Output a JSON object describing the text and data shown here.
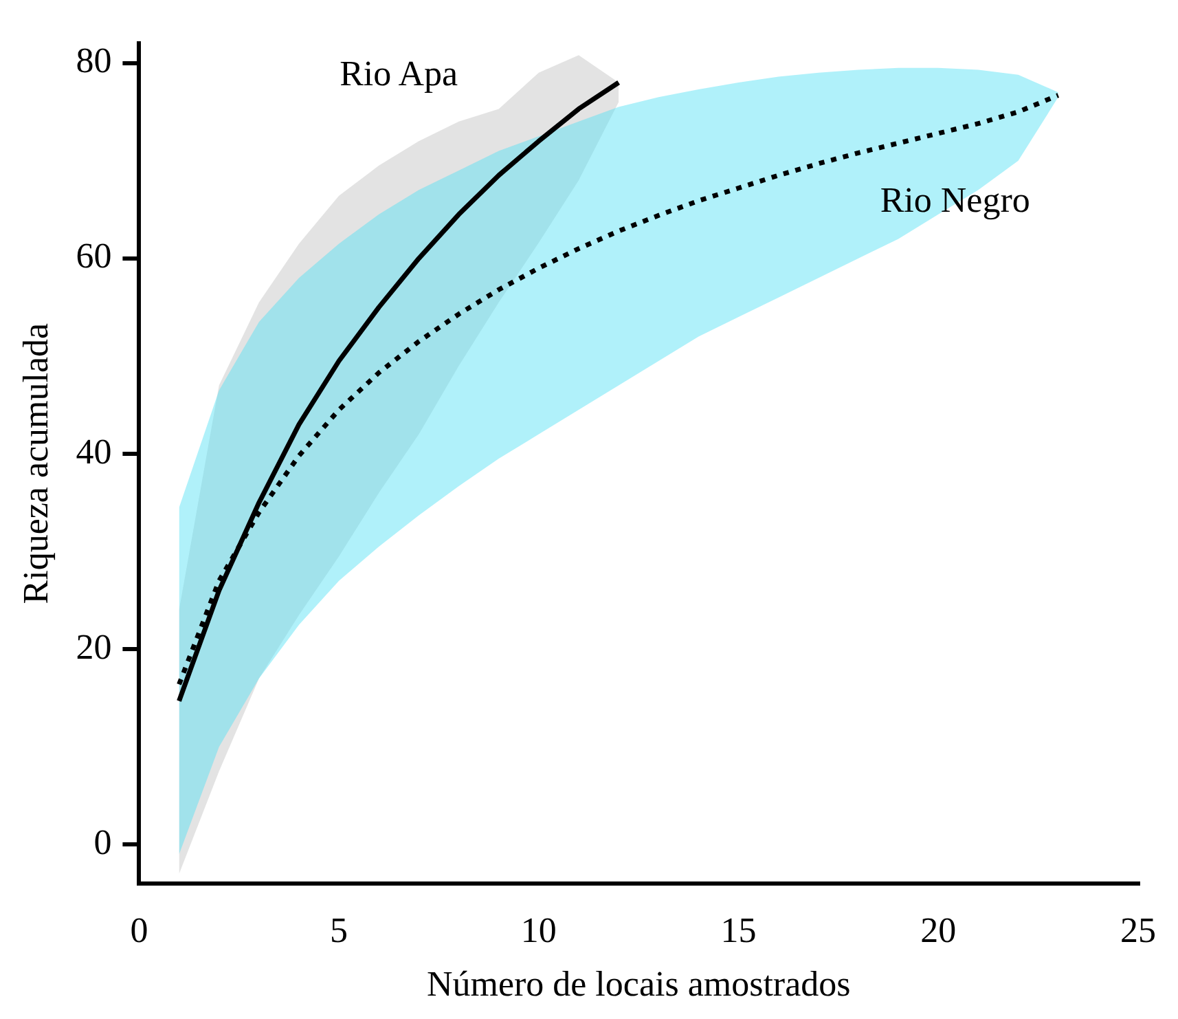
{
  "chart_data": {
    "type": "line",
    "xlabel": "Número de locais amostrados",
    "ylabel": "Riqueza acumulada",
    "xlim": [
      0,
      25
    ],
    "xticks": [
      0,
      5,
      10,
      15,
      20,
      25
    ],
    "ylim": [
      -4,
      82
    ],
    "yticks": [
      0,
      20,
      40,
      60,
      80
    ],
    "grid": false,
    "legend": false,
    "marker": "none",
    "series": [
      {
        "name": "Rio Apa",
        "color": "#000000",
        "line_style": "solid",
        "x": [
          1,
          2,
          3,
          4,
          5,
          6,
          7,
          8,
          9,
          10,
          11,
          12
        ],
        "values": [
          14.7,
          26,
          35,
          43,
          49.5,
          55,
          60,
          64.5,
          68.5,
          72,
          75.3,
          78
        ],
        "upper": [
          24,
          47,
          55.5,
          61.5,
          66.4,
          69.5,
          72,
          74,
          75.3,
          79,
          80.8,
          78
        ],
        "lower": [
          -3,
          7.5,
          17,
          23.5,
          29.5,
          36,
          42,
          49,
          55.5,
          61.6,
          68,
          76
        ]
      },
      {
        "name": "Rio Negro",
        "color": "#000000",
        "line_style": "dotted",
        "x": [
          1,
          2,
          3,
          4,
          5,
          6,
          7,
          8,
          9,
          10,
          11,
          12,
          13,
          14,
          15,
          16,
          17,
          18,
          19,
          20,
          21,
          22,
          23
        ],
        "values": [
          16.4,
          27,
          34,
          39.8,
          44.5,
          48.3,
          51.5,
          54.3,
          56.8,
          59,
          61,
          62.8,
          64.4,
          65.9,
          67.2,
          68.5,
          69.7,
          70.8,
          71.8,
          72.8,
          73.8,
          75,
          76.7
        ],
        "upper": [
          34.5,
          46.5,
          53.5,
          58,
          61.5,
          64.5,
          67,
          69,
          71,
          72.5,
          74,
          75.5,
          76.5,
          77.3,
          78,
          78.6,
          79,
          79.3,
          79.5,
          79.5,
          79.3,
          78.8,
          77
        ],
        "lower": [
          -1,
          10,
          17,
          22.5,
          27,
          30.5,
          33.7,
          36.7,
          39.5,
          42,
          44.5,
          47,
          49.5,
          52,
          54,
          56,
          58,
          60,
          62,
          64.5,
          67,
          70,
          76.5
        ]
      }
    ]
  }
}
